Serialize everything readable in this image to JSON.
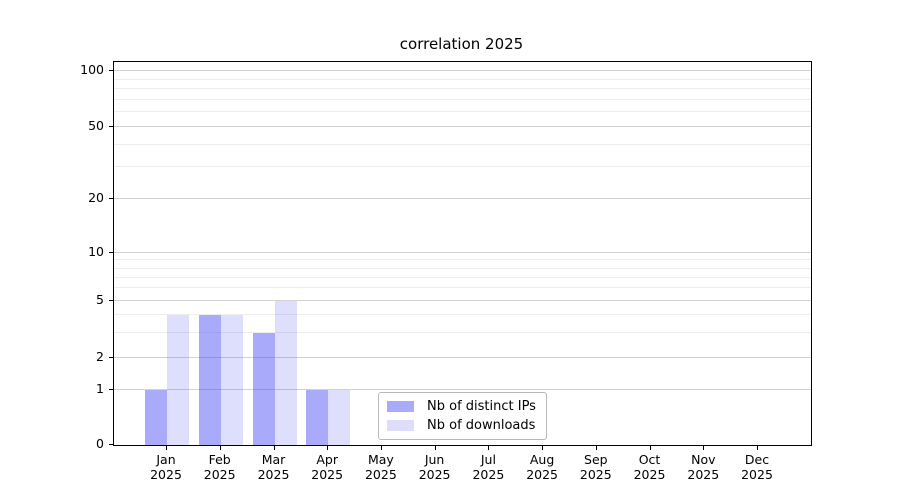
{
  "chart_data": {
    "type": "bar",
    "title": "correlation 2025",
    "categories": [
      "Jan",
      "Feb",
      "Mar",
      "Apr",
      "May",
      "Jun",
      "Jul",
      "Aug",
      "Sep",
      "Oct",
      "Nov",
      "Dec"
    ],
    "category_sublabel": "2025",
    "series": [
      {
        "name": "Nb of distinct IPs",
        "values": [
          1,
          4,
          3,
          1,
          0,
          0,
          0,
          0,
          0,
          0,
          0,
          0
        ],
        "bar_color": "rgba(70,70,244,0.46)",
        "legend_color": "#aaaafa"
      },
      {
        "name": "Nb of downloads",
        "values": [
          4,
          4,
          5,
          1,
          0,
          0,
          0,
          0,
          0,
          0,
          0,
          0
        ],
        "bar_color": "rgba(70,70,244,0.18)",
        "legend_color": "#dedefb"
      }
    ],
    "y_axis": {
      "scale": "log-like",
      "ticks": [
        0,
        1,
        2,
        5,
        10,
        20,
        50,
        100
      ],
      "minor_ticks": [
        3,
        4,
        6,
        7,
        8,
        9,
        30,
        40,
        60,
        70,
        80,
        90
      ],
      "ylim": [
        0,
        110
      ]
    },
    "x_axis": {
      "tick_style": "month over year, centered under each bar group"
    },
    "legend": {
      "position": "lower-center-inside",
      "entries": [
        "Nb of distinct IPs",
        "Nb of downloads"
      ]
    },
    "grid": {
      "major_color": "#d2d2d2",
      "minor_color": "#ededed",
      "orientation": "horizontal-only"
    },
    "colors": {
      "spine": "#000000",
      "background": "#ffffff",
      "text": "#000000",
      "legend_border": "#b9b9b9"
    }
  }
}
